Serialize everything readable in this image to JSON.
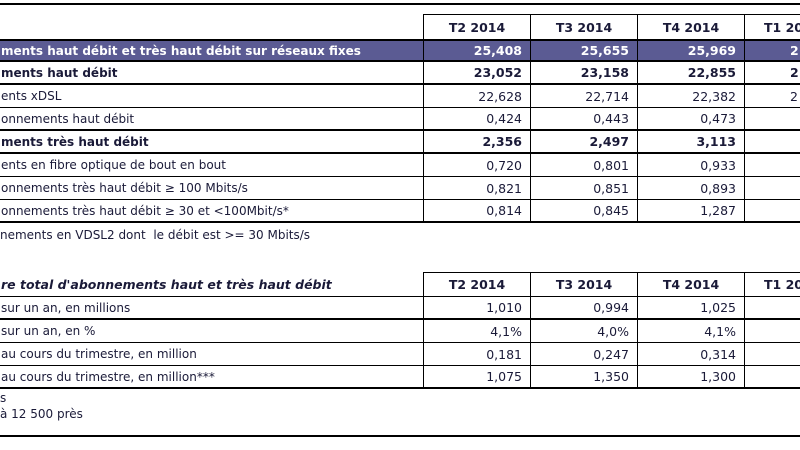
{
  "colors": {
    "header_bg": "#5b5b93",
    "text": "#1a1a38",
    "border": "#000000",
    "header_text": "#ffffff"
  },
  "table1": {
    "col_headers": [
      "T2 2014",
      "T3 2014",
      "T4 2014",
      "T1 20"
    ],
    "rows": [
      {
        "label": "ments haut débit et très haut débit sur réseaux fixes",
        "values": [
          "25,408",
          "25,655",
          "25,969",
          "2"
        ]
      },
      {
        "label": "ments haut débit",
        "values": [
          "23,052",
          "23,158",
          "22,855",
          "2"
        ]
      },
      {
        "label": "ents xDSL",
        "values": [
          "22,628",
          "22,714",
          "22,382",
          "2"
        ]
      },
      {
        "label": "onnements haut débit",
        "values": [
          "0,424",
          "0,443",
          "0,473",
          ""
        ]
      },
      {
        "label": "ments très haut débit",
        "values": [
          "2,356",
          "2,497",
          "3,113",
          ""
        ]
      },
      {
        "label": "ents en fibre optique de bout en bout",
        "values": [
          "0,720",
          "0,801",
          "0,933",
          ""
        ]
      },
      {
        "label": "onnements très haut débit ≥ 100 Mbits/s",
        "values": [
          "0,821",
          "0,851",
          "0,893",
          ""
        ]
      },
      {
        "label": "onnements très haut débit ≥ 30 et <100Mbit/s*",
        "values": [
          "0,814",
          "0,845",
          "1,287",
          ""
        ]
      }
    ],
    "footnote": "nements en VDSL2 dont  le débit est >= 30 Mbits/s"
  },
  "table2": {
    "header_label": "re total d'abonnements haut et très haut débit",
    "col_headers": [
      "T2 2014",
      "T3 2014",
      "T4 2014",
      "T1 20"
    ],
    "rows": [
      {
        "label": "sur un an, en millions",
        "values": [
          "1,010",
          "0,994",
          "1,025",
          ""
        ]
      },
      {
        "label": "sur un an, en %",
        "values": [
          "4,1%",
          "4,0%",
          "4,1%",
          ""
        ]
      },
      {
        "label": "au cours du trimestre, en million",
        "values": [
          "0,181",
          "0,247",
          "0,314",
          ""
        ]
      },
      {
        "label": "au cours du trimestre, en million***",
        "values": [
          "1,075",
          "1,350",
          "1,300",
          ""
        ]
      }
    ],
    "footnotes": [
      "s",
      "à 12 500 près"
    ]
  }
}
